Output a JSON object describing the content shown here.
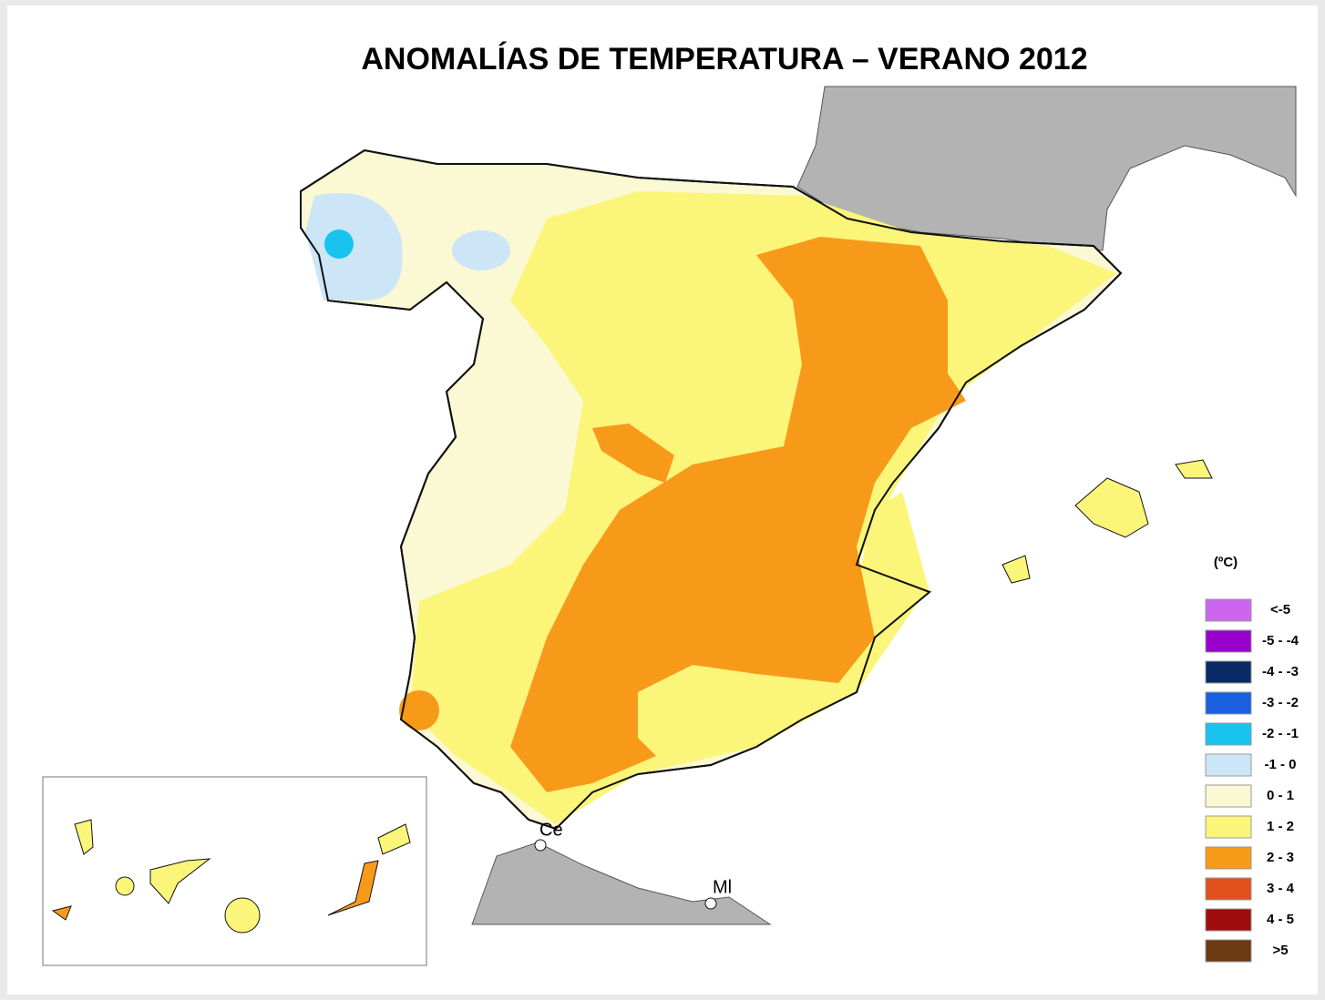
{
  "title": "ANOMALÍAS DE TEMPERATURA – VERANO 2012",
  "legend": {
    "unit": "(ºC)",
    "items": [
      {
        "label": "<-5",
        "color": "#cc66ee"
      },
      {
        "label": "-5 - -4",
        "color": "#9900cc"
      },
      {
        "label": "-4 - -3",
        "color": "#0a2a66"
      },
      {
        "label": "-3 - -2",
        "color": "#1a5fe0"
      },
      {
        "label": "-2 - -1",
        "color": "#18c4ee"
      },
      {
        "label": "-1 - 0",
        "color": "#cce6f8"
      },
      {
        "label": "0 - 1",
        "color": "#fbf8d4"
      },
      {
        "label": "1 - 2",
        "color": "#fbf57a"
      },
      {
        "label": "2 - 3",
        "color": "#f79a1a"
      },
      {
        "label": "3 - 4",
        "color": "#e0501a"
      },
      {
        "label": "4 - 5",
        "color": "#a00d0d"
      },
      {
        "label": ">5",
        "color": "#6b3a10"
      }
    ]
  },
  "places": [
    "Ce",
    "Ml"
  ]
}
